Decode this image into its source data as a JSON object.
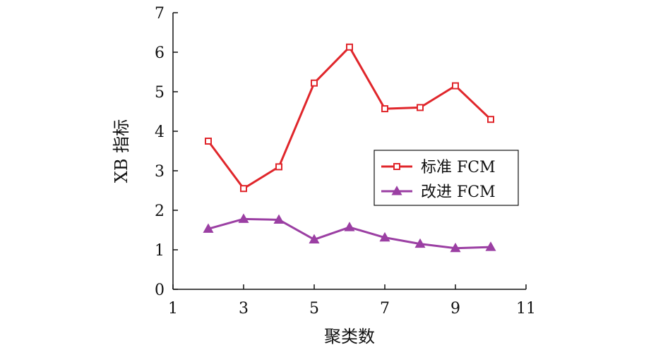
{
  "chart_data": {
    "type": "line",
    "xlabel": "聚类数",
    "ylabel": "XB 指标",
    "xlim": [
      1,
      11
    ],
    "ylim": [
      0,
      7
    ],
    "xticks": [
      "1",
      "3",
      "5",
      "7",
      "9",
      "11"
    ],
    "yticks": [
      "0",
      "1",
      "2",
      "3",
      "4",
      "5",
      "6",
      "7"
    ],
    "x": [
      2,
      3,
      4,
      5,
      6,
      7,
      8,
      9,
      10
    ],
    "series": [
      {
        "name": "标准 FCM",
        "color": "#e0262b",
        "marker": "square",
        "values": [
          3.75,
          2.55,
          3.1,
          5.22,
          6.13,
          4.57,
          4.6,
          5.15,
          4.3
        ]
      },
      {
        "name": "改进 FCM",
        "color": "#9b3fa3",
        "marker": "triangle",
        "values": [
          1.53,
          1.78,
          1.76,
          1.26,
          1.57,
          1.31,
          1.15,
          1.04,
          1.07
        ]
      }
    ],
    "legend": "center-right",
    "grid": false
  }
}
